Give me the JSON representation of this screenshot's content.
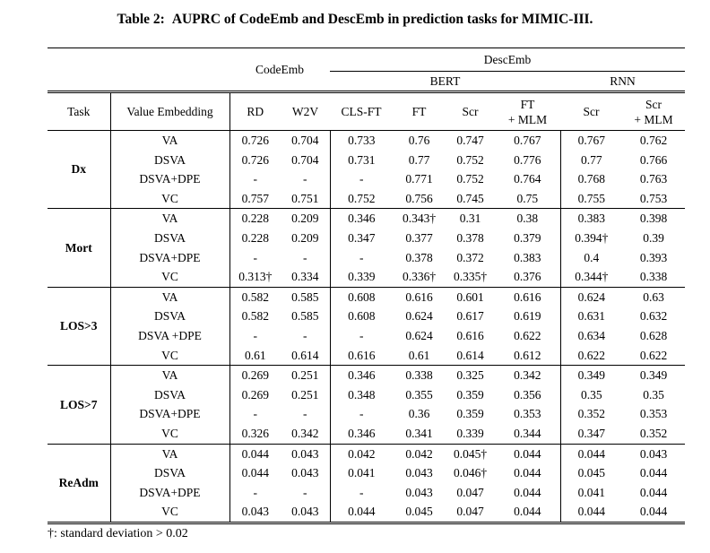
{
  "colors": {
    "ink": "#000000",
    "background": "#ffffff"
  },
  "caption": {
    "label": "Table 2:",
    "text": "AUPRC of CodeEmb and DescEmb in prediction tasks for MIMIC-III."
  },
  "table": {
    "group_headers": {
      "codeemb": "CodeEmb",
      "descemb": "DescEmb",
      "bert": "BERT",
      "rnn": "RNN"
    },
    "columns": [
      {
        "label": "Task"
      },
      {
        "label": "Value Embedding"
      },
      {
        "label": "RD"
      },
      {
        "label": "W2V"
      },
      {
        "label": "CLS-FT"
      },
      {
        "label": "FT"
      },
      {
        "label": "Scr"
      },
      {
        "label": "FT",
        "label2": "+ MLM"
      },
      {
        "label": "Scr"
      },
      {
        "label": "Scr",
        "label2": "+ MLM"
      }
    ],
    "blocks": [
      {
        "task": "Dx",
        "rows": [
          {
            "embedding": "VA",
            "values": [
              "0.726",
              "0.704",
              "0.733",
              "0.76",
              "0.747",
              "0.767",
              "0.767",
              "0.762"
            ]
          },
          {
            "embedding": "DSVA",
            "values": [
              "0.726",
              "0.704",
              "0.731",
              "0.77",
              "0.752",
              "0.776",
              "0.77",
              "0.766"
            ]
          },
          {
            "embedding": "DSVA+DPE",
            "values": [
              "-",
              "-",
              "-",
              "0.771",
              "0.752",
              "0.764",
              "0.768",
              "0.763"
            ]
          },
          {
            "embedding": "VC",
            "values": [
              "0.757",
              "0.751",
              "0.752",
              "0.756",
              "0.745",
              "0.75",
              "0.755",
              "0.753"
            ]
          }
        ]
      },
      {
        "task": "Mort",
        "rows": [
          {
            "embedding": "VA",
            "values": [
              "0.228",
              "0.209",
              "0.346",
              "0.343†",
              "0.31",
              "0.38",
              "0.383",
              "0.398"
            ]
          },
          {
            "embedding": "DSVA",
            "values": [
              "0.228",
              "0.209",
              "0.347",
              "0.377",
              "0.378",
              "0.379",
              "0.394†",
              "0.39"
            ]
          },
          {
            "embedding": "DSVA+DPE",
            "values": [
              "-",
              "-",
              "-",
              "0.378",
              "0.372",
              "0.383",
              "0.4",
              "0.393"
            ]
          },
          {
            "embedding": "VC",
            "values": [
              "0.313†",
              "0.334",
              "0.339",
              "0.336†",
              "0.335†",
              "0.376",
              "0.344†",
              "0.338"
            ]
          }
        ]
      },
      {
        "task": "LOS>3",
        "rows": [
          {
            "embedding": "VA",
            "values": [
              "0.582",
              "0.585",
              "0.608",
              "0.616",
              "0.601",
              "0.616",
              "0.624",
              "0.63"
            ]
          },
          {
            "embedding": "DSVA",
            "values": [
              "0.582",
              "0.585",
              "0.608",
              "0.624",
              "0.617",
              "0.619",
              "0.631",
              "0.632"
            ]
          },
          {
            "embedding": "DSVA +DPE",
            "values": [
              "-",
              "-",
              "-",
              "0.624",
              "0.616",
              "0.622",
              "0.634",
              "0.628"
            ]
          },
          {
            "embedding": "VC",
            "values": [
              "0.61",
              "0.614",
              "0.616",
              "0.61",
              "0.614",
              "0.612",
              "0.622",
              "0.622"
            ]
          }
        ]
      },
      {
        "task": "LOS>7",
        "rows": [
          {
            "embedding": "VA",
            "values": [
              "0.269",
              "0.251",
              "0.346",
              "0.338",
              "0.325",
              "0.342",
              "0.349",
              "0.349"
            ]
          },
          {
            "embedding": "DSVA",
            "values": [
              "0.269",
              "0.251",
              "0.348",
              "0.355",
              "0.359",
              "0.356",
              "0.35",
              "0.35"
            ]
          },
          {
            "embedding": "DSVA+DPE",
            "values": [
              "-",
              "-",
              "-",
              "0.36",
              "0.359",
              "0.353",
              "0.352",
              "0.353"
            ]
          },
          {
            "embedding": "VC",
            "values": [
              "0.326",
              "0.342",
              "0.346",
              "0.341",
              "0.339",
              "0.344",
              "0.347",
              "0.352"
            ]
          }
        ]
      },
      {
        "task": "ReAdm",
        "rows": [
          {
            "embedding": "VA",
            "values": [
              "0.044",
              "0.043",
              "0.042",
              "0.042",
              "0.045†",
              "0.044",
              "0.044",
              "0.043"
            ]
          },
          {
            "embedding": "DSVA",
            "values": [
              "0.044",
              "0.043",
              "0.041",
              "0.043",
              "0.046†",
              "0.044",
              "0.045",
              "0.044"
            ]
          },
          {
            "embedding": "DSVA+DPE",
            "values": [
              "-",
              "-",
              "-",
              "0.043",
              "0.047",
              "0.044",
              "0.041",
              "0.044"
            ]
          },
          {
            "embedding": "VC",
            "values": [
              "0.043",
              "0.043",
              "0.044",
              "0.045",
              "0.047",
              "0.044",
              "0.044",
              "0.044"
            ]
          }
        ]
      }
    ]
  },
  "footnote": "†: standard deviation > 0.02"
}
